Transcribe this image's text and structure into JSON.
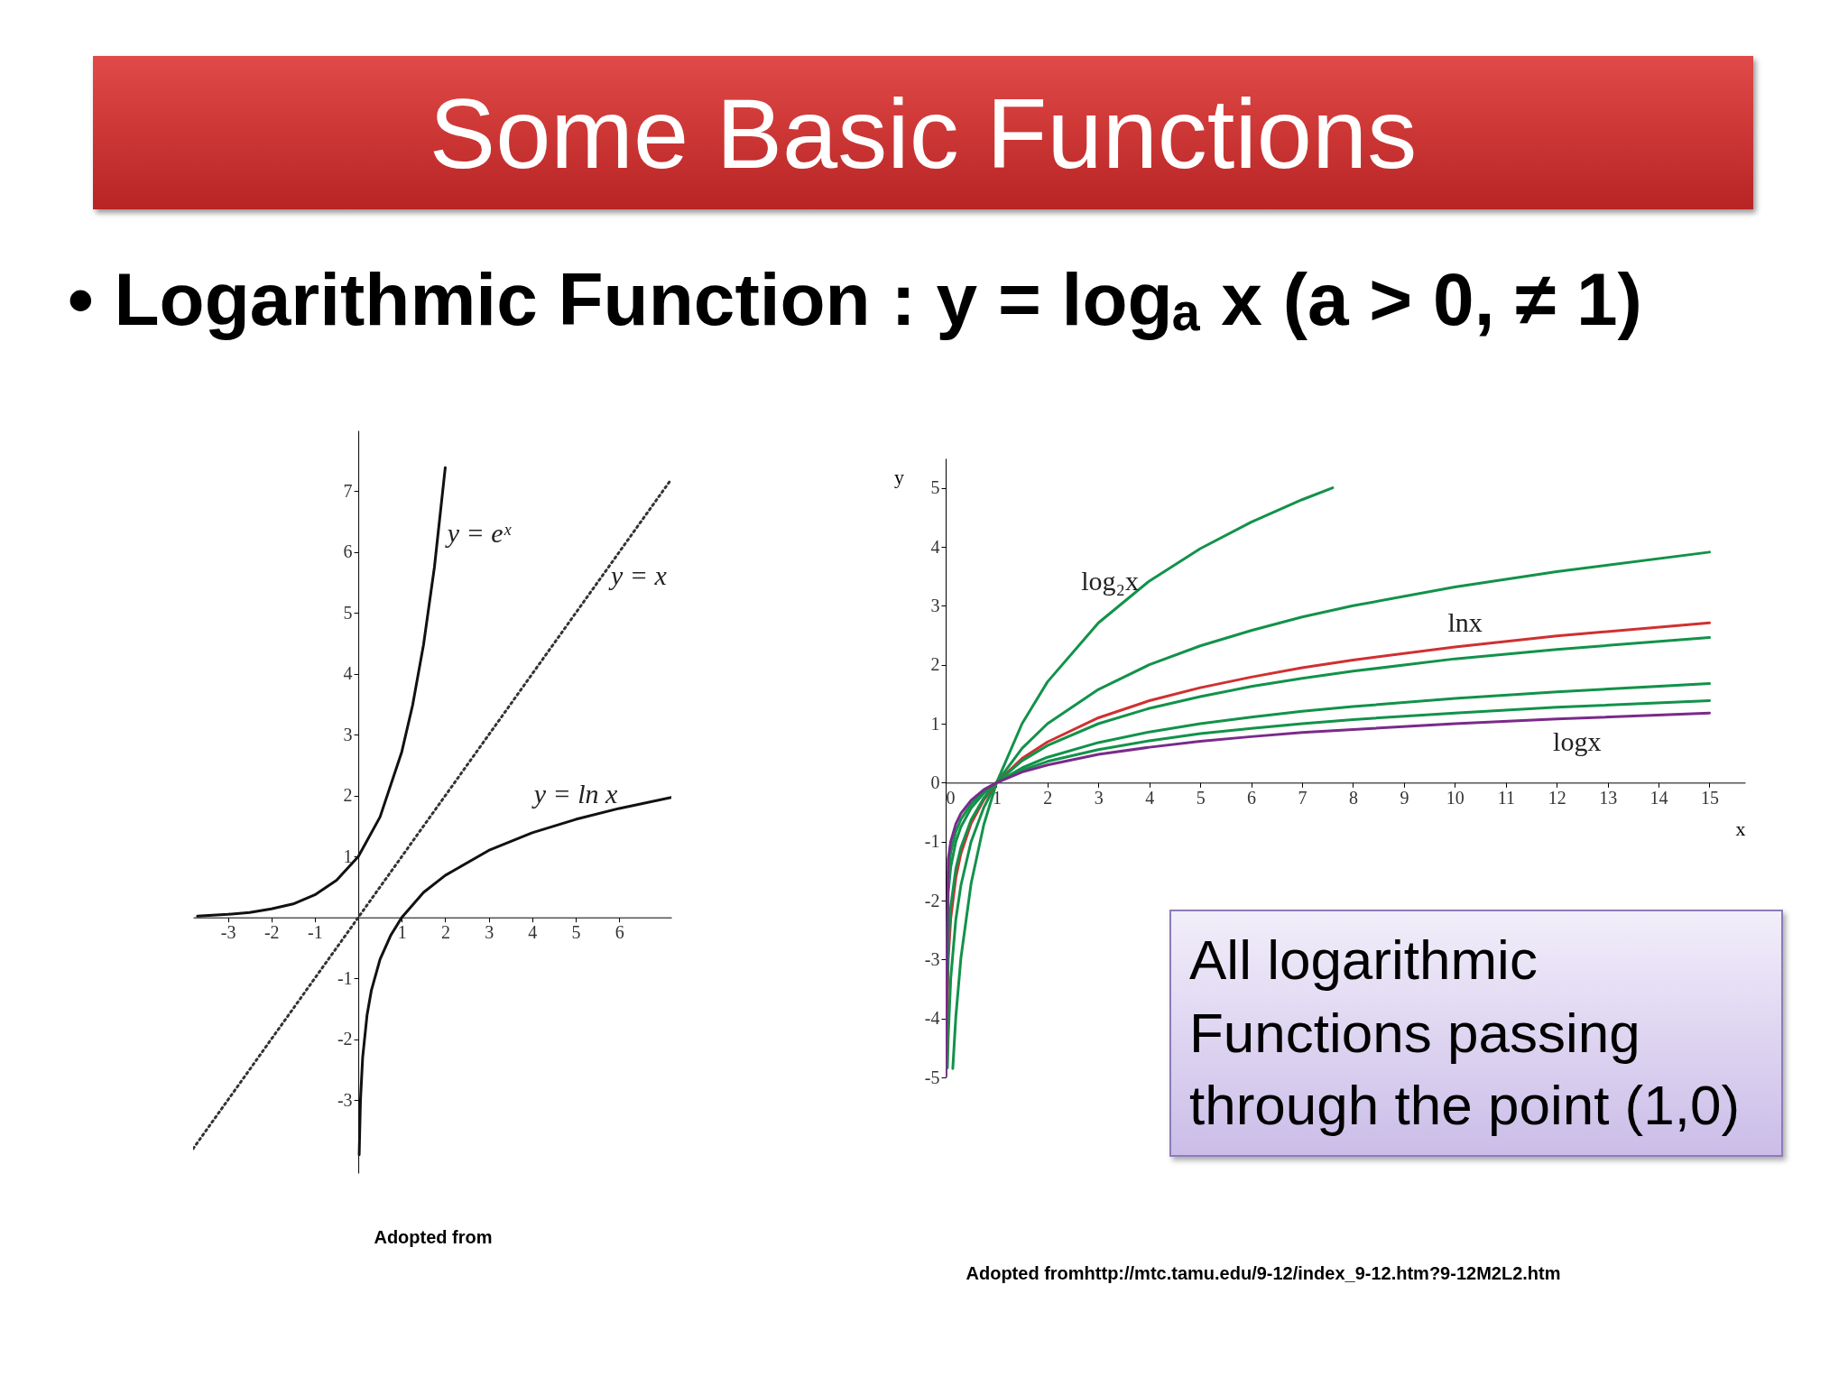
{
  "chart_data": [
    {
      "type": "line",
      "title": "Some Basic Functions",
      "subtitle": "• Logarithmic Function : y = logₐ x  (a > 0, ≠ 1)",
      "xlim": [
        -3.8,
        7.2
      ],
      "ylim": [
        -4.2,
        8
      ],
      "xticks": [
        -3,
        -2,
        -1,
        1,
        2,
        3,
        4,
        5,
        6
      ],
      "yticks": [
        -3,
        -2,
        -1,
        1,
        2,
        3,
        4,
        5,
        6,
        7
      ],
      "series": [
        {
          "color": "#111111",
          "x": [
            -3.7,
            -3,
            -2.5,
            -2,
            -1.5,
            -1,
            -0.5,
            0,
            0.5,
            1,
            1.25,
            1.5,
            1.75,
            2
          ],
          "values": [
            0.02,
            0.05,
            0.08,
            0.14,
            0.22,
            0.37,
            0.61,
            1,
            1.65,
            2.72,
            3.49,
            4.48,
            5.75,
            7.39
          ]
        },
        {
          "color": "#333333",
          "line_style": "dotted",
          "x": [
            -3.8,
            7.2
          ],
          "values": [
            -3.8,
            7.2
          ]
        },
        {
          "color": "#111111",
          "x": [
            0.02,
            0.05,
            0.1,
            0.2,
            0.3,
            0.5,
            0.75,
            1,
            1.5,
            2,
            3,
            4,
            5,
            6,
            7.2
          ],
          "values": [
            -3.9,
            -3,
            -2.3,
            -1.61,
            -1.2,
            -0.69,
            -0.29,
            0,
            0.41,
            0.69,
            1.1,
            1.39,
            1.61,
            1.79,
            1.97
          ]
        }
      ],
      "annotations": [
        {
          "text": "y = eˣ",
          "x": 1.84,
          "y": 6.3
        },
        {
          "text": "y = x",
          "x": 5.6,
          "y": 5.6
        },
        {
          "text": "y = ln x",
          "x": 5,
          "y": 1.61
        },
        "Adopted from"
      ]
    },
    {
      "type": "line",
      "xlabel": "x",
      "ylabel": "y",
      "xlim": [
        0,
        15.7
      ],
      "ylim": [
        -5,
        5.5
      ],
      "xticks": [
        0,
        1,
        2,
        3,
        4,
        5,
        6,
        7,
        8,
        9,
        10,
        11,
        12,
        13,
        14,
        15
      ],
      "yticks": [
        -5,
        -4,
        -3,
        -2,
        -1,
        0,
        1,
        2,
        3,
        4,
        5
      ],
      "series": [
        {
          "color": "#12924a",
          "x": [
            0.14,
            0.2,
            0.3,
            0.5,
            0.75,
            1,
            1.5,
            2,
            3,
            4,
            5,
            6,
            7,
            7.6
          ],
          "values": [
            -4.85,
            -3.97,
            -2.97,
            -1.71,
            -0.71,
            0,
            1,
            1.71,
            2.71,
            3.42,
            3.97,
            4.42,
            4.8,
            5.0
          ]
        },
        {
          "color": "#12924a",
          "x": [
            0.035,
            0.05,
            0.1,
            0.2,
            0.3,
            0.5,
            0.75,
            1,
            1.5,
            2,
            3,
            4,
            5,
            6,
            7,
            8,
            10,
            12,
            15
          ],
          "values": [
            -4.84,
            -4.32,
            -3.32,
            -2.32,
            -1.74,
            -1,
            -0.42,
            0,
            0.58,
            1,
            1.58,
            2,
            2.32,
            2.58,
            2.81,
            3,
            3.32,
            3.58,
            3.91
          ]
        },
        {
          "color": "#d03030",
          "x": [
            0.007,
            0.05,
            0.1,
            0.2,
            0.3,
            0.5,
            0.75,
            1,
            1.5,
            2,
            3,
            4,
            5,
            6,
            7,
            8,
            10,
            12,
            15
          ],
          "values": [
            -4.96,
            -3,
            -2.3,
            -1.61,
            -1.2,
            -0.69,
            -0.29,
            0,
            0.41,
            0.69,
            1.1,
            1.39,
            1.61,
            1.79,
            1.95,
            2.08,
            2.3,
            2.49,
            2.71
          ]
        },
        {
          "color": "#12924a",
          "x": [
            0.005,
            0.05,
            0.1,
            0.2,
            0.3,
            0.5,
            0.75,
            1,
            1.5,
            2,
            3,
            4,
            5,
            6,
            7,
            8,
            10,
            12,
            15
          ],
          "values": [
            -4.82,
            -2.73,
            -2.1,
            -1.46,
            -1.1,
            -0.63,
            -0.26,
            0,
            0.37,
            0.63,
            1,
            1.26,
            1.46,
            1.63,
            1.77,
            1.89,
            2.1,
            2.26,
            2.46
          ]
        },
        {
          "color": "#12924a",
          "x": [
            0.0004,
            0.05,
            0.1,
            0.2,
            0.3,
            0.5,
            0.75,
            1,
            1.5,
            2,
            3,
            4,
            5,
            6,
            7,
            8,
            10,
            12,
            15
          ],
          "values": [
            -4.86,
            -1.86,
            -1.43,
            -1,
            -0.75,
            -0.43,
            -0.18,
            0,
            0.25,
            0.43,
            0.68,
            0.86,
            1,
            1.11,
            1.21,
            1.29,
            1.43,
            1.54,
            1.68
          ]
        },
        {
          "color": "#12924a",
          "x": [
            6e-05,
            0.05,
            0.1,
            0.2,
            0.3,
            0.5,
            0.75,
            1,
            1.5,
            2,
            3,
            4,
            5,
            6,
            7,
            8,
            10,
            12,
            15
          ],
          "values": [
            -4.99,
            -1.54,
            -1.18,
            -0.83,
            -0.62,
            -0.36,
            -0.15,
            0,
            0.21,
            0.36,
            0.56,
            0.71,
            0.83,
            0.92,
            1,
            1.07,
            1.18,
            1.28,
            1.39
          ]
        },
        {
          "color": "#7a2a8a",
          "x": [
            1e-05,
            0.05,
            0.1,
            0.2,
            0.3,
            0.5,
            0.75,
            1,
            1.5,
            2,
            3,
            4,
            5,
            6,
            7,
            8,
            10,
            12,
            15
          ],
          "values": [
            -5,
            -1.3,
            -1,
            -0.7,
            -0.52,
            -0.3,
            -0.12,
            0,
            0.18,
            0.3,
            0.48,
            0.6,
            0.7,
            0.78,
            0.85,
            0.9,
            1,
            1.08,
            1.18
          ]
        }
      ],
      "annotations": [
        {
          "text": "log₂x",
          "x": 3.97,
          "y": 3.4
        },
        {
          "text": "lnx",
          "x": 10.2,
          "y": 2.32
        },
        {
          "text": "logx",
          "x": 12.4,
          "y": 1.09
        },
        "All logarithmic Functions passing through the point (1,0)",
        "Adopted fromhttp://mtc.tamu.edu/9-12/index_9-12.htm?9-12M2L2.htm"
      ]
    }
  ]
}
